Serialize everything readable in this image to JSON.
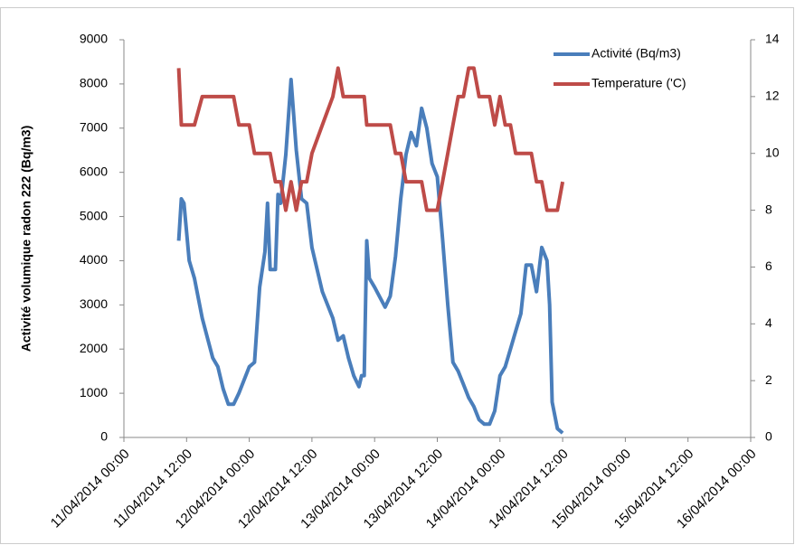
{
  "chart_data": {
    "type": "line",
    "y_label": "Activité volumique radon 222 (Bq/m3)",
    "legend": "top-right",
    "grid": false,
    "x": [
      "2014-04-11T10:30",
      "2014-04-11T11:00",
      "2014-04-11T11:30",
      "2014-04-11T12:30",
      "2014-04-11T13:30",
      "2014-04-11T15:00",
      "2014-04-11T17:00",
      "2014-04-11T18:00",
      "2014-04-11T19:00",
      "2014-04-11T20:00",
      "2014-04-11T21:00",
      "2014-04-11T22:00",
      "2014-04-12T00:00",
      "2014-04-12T01:00",
      "2014-04-12T02:00",
      "2014-04-12T03:00",
      "2014-04-12T03:30",
      "2014-04-12T04:00",
      "2014-04-12T05:00",
      "2014-04-12T05:30",
      "2014-04-12T06:00",
      "2014-04-12T07:00",
      "2014-04-12T08:00",
      "2014-04-12T09:00",
      "2014-04-12T10:00",
      "2014-04-12T11:00",
      "2014-04-12T12:00",
      "2014-04-12T14:00",
      "2014-04-12T16:00",
      "2014-04-12T17:00",
      "2014-04-12T18:00",
      "2014-04-12T19:00",
      "2014-04-12T20:00",
      "2014-04-12T21:00",
      "2014-04-12T21:30",
      "2014-04-12T22:00",
      "2014-04-12T22:30",
      "2014-04-12T23:00",
      "2014-04-13T00:00",
      "2014-04-13T02:00",
      "2014-04-13T03:00",
      "2014-04-13T04:00",
      "2014-04-13T05:00",
      "2014-04-13T06:00",
      "2014-04-13T07:00",
      "2014-04-13T08:00",
      "2014-04-13T09:00",
      "2014-04-13T10:00",
      "2014-04-13T11:00",
      "2014-04-13T12:00",
      "2014-04-13T13:00",
      "2014-04-13T14:00",
      "2014-04-13T15:00",
      "2014-04-13T16:00",
      "2014-04-13T17:00",
      "2014-04-13T18:00",
      "2014-04-13T19:00",
      "2014-04-13T20:00",
      "2014-04-13T21:00",
      "2014-04-13T22:00",
      "2014-04-13T23:00",
      "2014-04-14T00:00",
      "2014-04-14T01:00",
      "2014-04-14T02:00",
      "2014-04-14T03:00",
      "2014-04-14T04:00",
      "2014-04-14T05:00",
      "2014-04-14T06:00",
      "2014-04-14T07:00",
      "2014-04-14T08:00",
      "2014-04-14T09:00",
      "2014-04-14T09:30",
      "2014-04-14T10:00",
      "2014-04-14T11:00",
      "2014-04-14T12:00"
    ],
    "series": [
      {
        "name": "Activité (Bq/m3)",
        "color": "#4a7ebb",
        "axis": "y",
        "values": [
          4450,
          5400,
          5300,
          4000,
          3600,
          2700,
          1800,
          1600,
          1100,
          750,
          750,
          1000,
          1600,
          1700,
          3400,
          4200,
          5300,
          3800,
          3800,
          5500,
          5300,
          6400,
          8100,
          6500,
          5400,
          5300,
          4300,
          3300,
          2700,
          2200,
          2300,
          1800,
          1400,
          1150,
          1400,
          1400,
          4450,
          3600,
          3400,
          2950,
          3200,
          4100,
          5400,
          6400,
          6900,
          6600,
          7450,
          7000,
          6200,
          5900,
          4500,
          3000,
          1700,
          1500,
          1200,
          900,
          700,
          400,
          300,
          300,
          600,
          1400,
          1600,
          2000,
          2400,
          2800,
          3900,
          3900,
          3300,
          4300,
          4000,
          3000,
          800,
          200,
          100
        ]
      },
      {
        "name": "Temperature ('C)",
        "color": "#be4b48",
        "axis": "y2",
        "values": [
          13,
          11,
          11,
          11,
          11,
          12,
          12,
          12,
          12,
          12,
          12,
          11,
          11,
          10,
          10,
          10,
          10,
          10,
          9,
          9,
          9,
          8,
          9,
          8,
          9,
          9,
          10,
          11,
          12,
          13,
          12,
          12,
          12,
          12,
          12,
          12,
          11,
          11,
          11,
          11,
          11,
          10,
          10,
          9,
          9,
          9,
          9,
          8,
          8,
          8,
          9,
          10,
          11,
          12,
          12,
          13,
          13,
          12,
          12,
          12,
          11,
          12,
          11,
          11,
          10,
          10,
          10,
          10,
          9,
          9,
          8,
          8,
          8,
          8,
          9
        ]
      }
    ],
    "xlim": [
      "2014-04-11T00:00",
      "2014-04-16T00:00"
    ],
    "xticks": [
      {
        "value": "2014-04-11T00:00",
        "label": "11/04/2014 00:00"
      },
      {
        "value": "2014-04-11T12:00",
        "label": "11/04/2014 12:00"
      },
      {
        "value": "2014-04-12T00:00",
        "label": "12/04/2014 00:00"
      },
      {
        "value": "2014-04-12T12:00",
        "label": "12/04/2014 12:00"
      },
      {
        "value": "2014-04-13T00:00",
        "label": "13/04/2014 00:00"
      },
      {
        "value": "2014-04-13T12:00",
        "label": "13/04/2014 12:00"
      },
      {
        "value": "2014-04-14T00:00",
        "label": "14/04/2014 00:00"
      },
      {
        "value": "2014-04-14T12:00",
        "label": "14/04/2014 12:00"
      },
      {
        "value": "2014-04-15T00:00",
        "label": "15/04/2014 00:00"
      },
      {
        "value": "2014-04-15T12:00",
        "label": "15/04/2014 12:00"
      },
      {
        "value": "2014-04-16T00:00",
        "label": "16/04/2014 00:00"
      }
    ],
    "ylim": [
      0,
      9000
    ],
    "yticks": [
      0,
      1000,
      2000,
      3000,
      4000,
      5000,
      6000,
      7000,
      8000,
      9000
    ],
    "y2lim": [
      0,
      14
    ],
    "y2ticks": [
      0,
      2,
      4,
      6,
      8,
      10,
      12,
      14
    ]
  }
}
